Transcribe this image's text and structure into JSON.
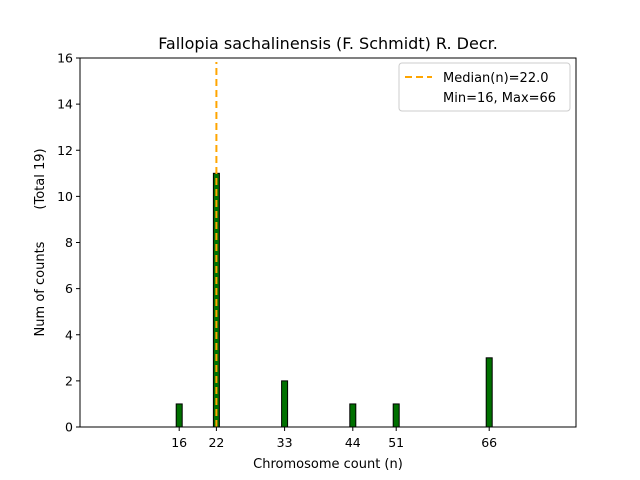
{
  "chart_data": {
    "type": "bar",
    "title": "Fallopia sachalinensis (F. Schmidt) R. Decr.",
    "xlabel": "Chromosome count (n)",
    "ylabel_left": "Num of counts",
    "ylabel_right": "(Total 19)",
    "x": [
      16,
      22,
      33,
      44,
      51,
      66
    ],
    "values": [
      1,
      11,
      2,
      1,
      1,
      3
    ],
    "xticks": [
      "16",
      "22",
      "33",
      "44",
      "51",
      "66"
    ],
    "yticks": [
      "0",
      "2",
      "4",
      "6",
      "8",
      "10",
      "12",
      "14",
      "16"
    ],
    "xlim": [
      0,
      80
    ],
    "ylim": [
      0,
      16
    ],
    "bar_color": "#007000",
    "median": 22.0,
    "median_color": "#ffa500",
    "legend": {
      "position": "top-right",
      "median_label": "Median(n)=22.0",
      "range_label": "Min=16, Max=66"
    },
    "grid": false
  }
}
